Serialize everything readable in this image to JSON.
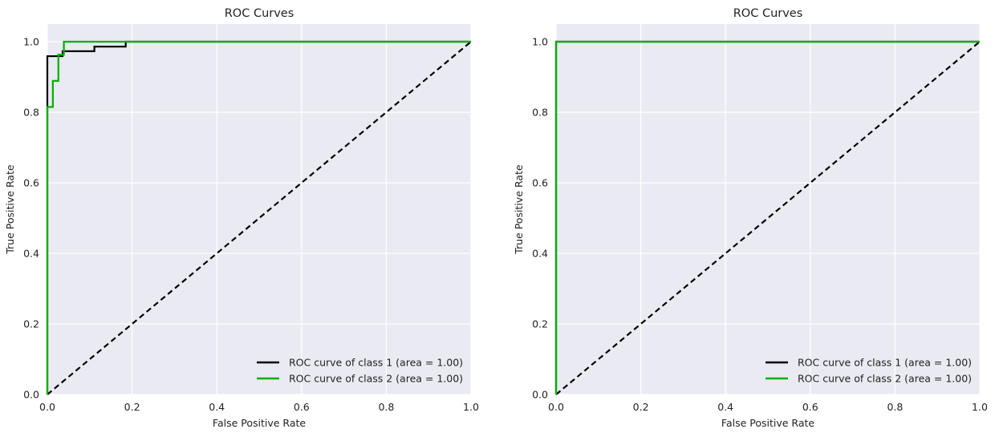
{
  "chart_data": [
    {
      "type": "line",
      "title": "ROC Curves",
      "xlabel": "False Positive Rate",
      "ylabel": "True Positive Rate",
      "xlim": [
        0.0,
        1.0
      ],
      "ylim": [
        0.0,
        1.05
      ],
      "xticks": [
        "0.0",
        "0.2",
        "0.4",
        "0.6",
        "0.8",
        "1.0"
      ],
      "yticks": [
        "0.0",
        "0.2",
        "0.4",
        "0.6",
        "0.8",
        "1.0"
      ],
      "grid": true,
      "legend_position": "lower-right",
      "series": [
        {
          "name": "ROC curve of class 1 (area = 1.00)",
          "color": "#000000",
          "x": [
            0.0,
            0.0,
            0.0,
            0.036,
            0.036,
            0.111,
            0.111,
            0.185,
            0.185,
            1.0
          ],
          "y": [
            0.0,
            0.83,
            0.959,
            0.959,
            0.973,
            0.973,
            0.986,
            0.986,
            1.0,
            1.0
          ]
        },
        {
          "name": "ROC curve of class 2 (area = 1.00)",
          "color": "#00b000",
          "x": [
            0.0,
            0.0,
            0.013,
            0.013,
            0.026,
            0.026,
            0.039,
            0.039,
            1.0
          ],
          "y": [
            0.0,
            0.815,
            0.815,
            0.889,
            0.889,
            0.963,
            0.963,
            1.0,
            1.0
          ]
        },
        {
          "name": "",
          "color": "#000000",
          "dashed": true,
          "x": [
            0.0,
            1.0
          ],
          "y": [
            0.0,
            1.0
          ]
        }
      ]
    },
    {
      "type": "line",
      "title": "ROC Curves",
      "xlabel": "False Positive Rate",
      "ylabel": "True Positive Rate",
      "xlim": [
        0.0,
        1.0
      ],
      "ylim": [
        0.0,
        1.05
      ],
      "xticks": [
        "0.0",
        "0.2",
        "0.4",
        "0.6",
        "0.8",
        "1.0"
      ],
      "yticks": [
        "0.0",
        "0.2",
        "0.4",
        "0.6",
        "0.8",
        "1.0"
      ],
      "grid": true,
      "legend_position": "lower-right",
      "series": [
        {
          "name": "ROC curve of class 1 (area = 1.00)",
          "color": "#000000",
          "x": [
            0.0,
            0.0,
            1.0
          ],
          "y": [
            0.0,
            1.0,
            1.0
          ]
        },
        {
          "name": "ROC curve of class 2 (area = 1.00)",
          "color": "#00b000",
          "x": [
            0.0,
            0.0,
            1.0
          ],
          "y": [
            0.0,
            1.0,
            1.0
          ]
        },
        {
          "name": "",
          "color": "#000000",
          "dashed": true,
          "x": [
            0.0,
            1.0
          ],
          "y": [
            0.0,
            1.0
          ]
        }
      ]
    }
  ]
}
